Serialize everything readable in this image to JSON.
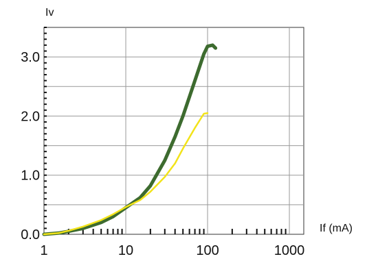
{
  "chart_data": {
    "type": "line",
    "title": "",
    "xlabel": "If (mA)",
    "ylabel": "Iv",
    "x_scale": "log",
    "xlim": [
      1,
      1500
    ],
    "ylim": [
      0,
      3.5
    ],
    "grid": true,
    "x_ticks": [
      {
        "value": 1,
        "label": "1"
      },
      {
        "value": 10,
        "label": "10"
      },
      {
        "value": 100,
        "label": "100"
      },
      {
        "value": 1000,
        "label": "1000"
      }
    ],
    "y_ticks": [
      {
        "value": 0,
        "label": "0.0"
      },
      {
        "value": 1,
        "label": "1.0"
      },
      {
        "value": 2,
        "label": "2.0"
      },
      {
        "value": 3,
        "label": "3.0"
      }
    ],
    "y_gridlines": [
      0.5,
      1.0,
      1.5,
      2.0,
      2.5,
      3.0
    ],
    "series": [
      {
        "color": "#3d6b2f",
        "points": [
          [
            1,
            0.0
          ],
          [
            1.5,
            0.02
          ],
          [
            2,
            0.05
          ],
          [
            3,
            0.1
          ],
          [
            5,
            0.2
          ],
          [
            7,
            0.3
          ],
          [
            10,
            0.45
          ],
          [
            15,
            0.62
          ],
          [
            20,
            0.82
          ],
          [
            30,
            1.25
          ],
          [
            40,
            1.65
          ],
          [
            50,
            2.0
          ],
          [
            70,
            2.6
          ],
          [
            90,
            3.05
          ],
          [
            100,
            3.18
          ],
          [
            115,
            3.2
          ],
          [
            125,
            3.15
          ]
        ]
      },
      {
        "color": "#f2e31a",
        "points": [
          [
            1,
            0.0
          ],
          [
            1.5,
            0.02
          ],
          [
            2,
            0.06
          ],
          [
            3,
            0.13
          ],
          [
            5,
            0.24
          ],
          [
            7,
            0.34
          ],
          [
            10,
            0.46
          ],
          [
            15,
            0.58
          ],
          [
            20,
            0.72
          ],
          [
            30,
            0.97
          ],
          [
            40,
            1.2
          ],
          [
            50,
            1.45
          ],
          [
            70,
            1.8
          ],
          [
            90,
            2.04
          ],
          [
            100,
            2.05
          ]
        ]
      }
    ]
  }
}
